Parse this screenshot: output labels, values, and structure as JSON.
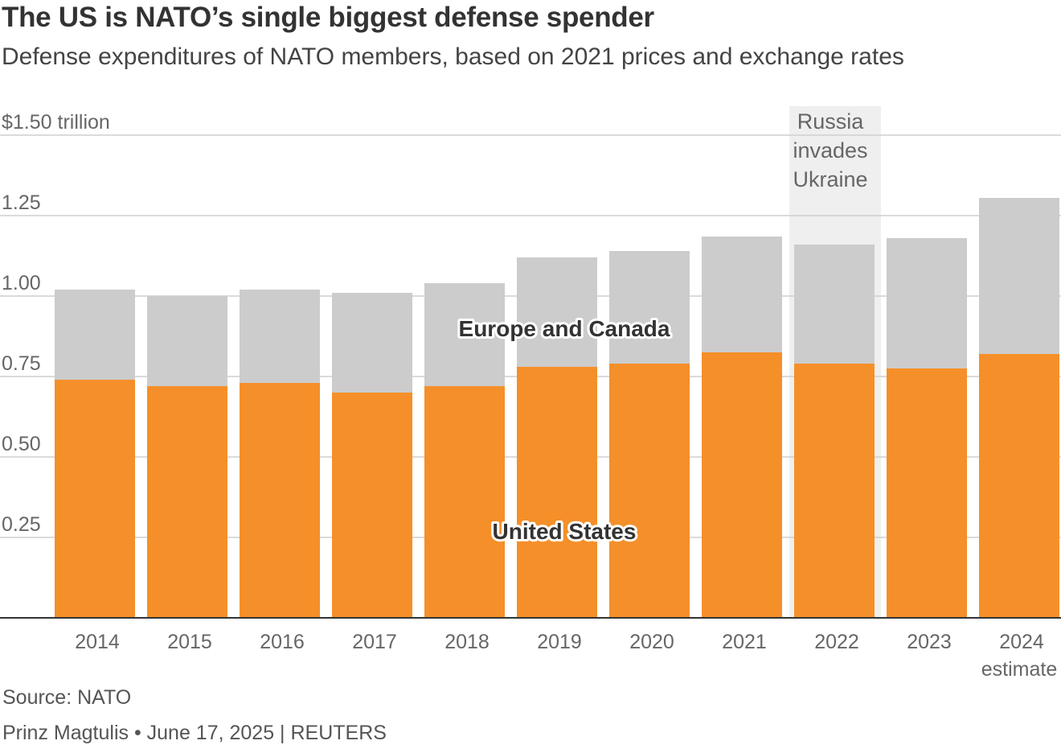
{
  "chart_data": {
    "type": "bar",
    "stacked": true,
    "title": "The US is NATO’s single biggest defense spender",
    "subtitle": "Defense expenditures of NATO members, based on 2021 prices and exchange rates",
    "categories": [
      "2014",
      "2015",
      "2016",
      "2017",
      "2018",
      "2019",
      "2020",
      "2021",
      "2022",
      "2023",
      "2024"
    ],
    "category_sublabels": {
      "2024": "estimate"
    },
    "series": [
      {
        "name": "United States",
        "color": "#f58f29",
        "values": [
          0.74,
          0.72,
          0.73,
          0.7,
          0.72,
          0.78,
          0.79,
          0.825,
          0.79,
          0.775,
          0.82
        ]
      },
      {
        "name": "Europe and Canada",
        "color": "#cccccc",
        "values": [
          0.28,
          0.28,
          0.29,
          0.31,
          0.32,
          0.34,
          0.35,
          0.36,
          0.37,
          0.405,
          0.485
        ]
      }
    ],
    "ylim": [
      0,
      1.5
    ],
    "yticks": [
      0.25,
      0.5,
      0.75,
      1.0,
      1.25,
      1.5
    ],
    "ytick_labels": [
      "0.25",
      "0.50",
      "0.75",
      "1.00",
      "1.25",
      "$1.50 trillion"
    ],
    "grid": true,
    "annotation": {
      "category": "2022",
      "lines": [
        "Russia",
        "invades",
        "Ukraine"
      ],
      "shade_color": "#efefef"
    }
  },
  "footer": {
    "source": "Source: NATO",
    "credit": "Prinz Magtulis • June 17, 2025 | REUTERS"
  }
}
